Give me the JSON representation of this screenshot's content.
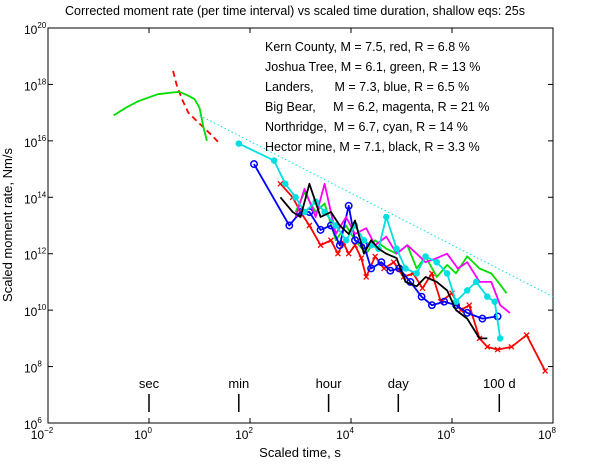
{
  "chart_data": {
    "type": "line",
    "title": "Corrected moment rate (per time interval) vs scaled time duration, shallow eqs: 25s",
    "xlabel": "Scaled time, s",
    "ylabel": "Scaled moment rate, Nm/s",
    "x_scale": "log",
    "y_scale": "log",
    "xlim": [
      0.01,
      100000000
    ],
    "ylim": [
      1000000,
      100000000000000000000
    ],
    "x_ticks": [
      {
        "value": 0.01,
        "base": "10",
        "exp": "−2"
      },
      {
        "value": 1,
        "base": "10",
        "exp": "0"
      },
      {
        "value": 100,
        "base": "10",
        "exp": "2"
      },
      {
        "value": 10000,
        "base": "10",
        "exp": "4"
      },
      {
        "value": 1000000,
        "base": "10",
        "exp": "6"
      },
      {
        "value": 100000000,
        "base": "10",
        "exp": "8"
      }
    ],
    "y_ticks": [
      {
        "value": 1000000,
        "base": "10",
        "exp": "6"
      },
      {
        "value": 100000000,
        "base": "10",
        "exp": "8"
      },
      {
        "value": 10000000000,
        "base": "10",
        "exp": "10"
      },
      {
        "value": 1000000000000,
        "base": "10",
        "exp": "12"
      },
      {
        "value": 100000000000000,
        "base": "10",
        "exp": "14"
      },
      {
        "value": 10000000000000000,
        "base": "10",
        "exp": "16"
      },
      {
        "value": 1000000000000000000,
        "base": "10",
        "exp": "18"
      },
      {
        "value": 100000000000000000000,
        "base": "10",
        "exp": "20"
      }
    ],
    "time_markers": [
      {
        "label": "sec",
        "x": 1
      },
      {
        "label": "min",
        "x": 60
      },
      {
        "label": "hour",
        "x": 3600
      },
      {
        "label": "day",
        "x": 86400
      },
      {
        "label": "100 d",
        "x": 8640000
      }
    ],
    "legend": [
      {
        "text": "Kern County, M = 7.5, red, R = 6.8 %"
      },
      {
        "text": "Joshua Tree, M = 6.1, green, R = 13 %"
      },
      {
        "text": "Landers,      M = 7.3, blue, R = 6.5 %"
      },
      {
        "text": "Big Bear,     M = 6.2, magenta, R = 21 %"
      },
      {
        "text": "Northridge,  M = 6.7, cyan, R = 14 %"
      },
      {
        "text": "Hector mine, M = 7.1, black, R = 3.3 %"
      }
    ],
    "grid": false,
    "series": [
      {
        "color": "#ff0000",
        "style": "solid",
        "marker": "x",
        "points": [
          [
            400,
            300000000000000.0
          ],
          [
            700,
            100000000000000.0
          ],
          [
            1000,
            30000000000000.0
          ],
          [
            1500,
            10000000000000.0
          ],
          [
            2500,
            2000000000000.0
          ],
          [
            4000,
            3000000000000.0
          ],
          [
            5500,
            1000000000000.0
          ],
          [
            7000,
            2500000000000.0
          ],
          [
            9000,
            1000000000000.0
          ],
          [
            12000,
            2000000000000.0
          ],
          [
            16000,
            700000000000.0
          ],
          [
            20000,
            150000000000.0
          ],
          [
            30000,
            800000000000.0
          ],
          [
            45000,
            300000000000.0
          ],
          [
            70000,
            500000000000.0
          ],
          [
            110000,
            150000000000.0
          ],
          [
            170000,
            200000000000.0
          ],
          [
            260000,
            60000000000.0
          ],
          [
            400000,
            200000000000.0
          ],
          [
            600000,
            20000000000.0
          ],
          [
            1000000,
            40000000000.0
          ],
          [
            1500000,
            10000000000.0
          ],
          [
            2200000,
            15000000000.0
          ],
          [
            3500000,
            1000000000.0
          ],
          [
            5000000,
            500000000.0
          ],
          [
            8000000,
            400000000.0
          ],
          [
            15000000,
            500000000.0
          ],
          [
            30000000,
            1300000000.0
          ],
          [
            70000000,
            70000000.0
          ]
        ]
      },
      {
        "color": "#ff0000",
        "style": "dashed",
        "marker": "none",
        "points": [
          [
            3,
            3e+18
          ],
          [
            3.5,
            1e+18
          ],
          [
            4.5,
            3e+17
          ],
          [
            6,
            1e+17
          ],
          [
            8,
            6e+16
          ],
          [
            12,
            3e+16
          ],
          [
            18,
            1.5e+16
          ],
          [
            25,
            8000000000000000.0
          ]
        ]
      },
      {
        "color": "#00dd00",
        "style": "solid",
        "marker": "none",
        "points": [
          [
            0.2,
            8e+16
          ],
          [
            0.35,
            1.5e+17
          ],
          [
            0.6,
            2.5e+17
          ],
          [
            1,
            3.5e+17
          ],
          [
            1.5,
            4.5e+17
          ],
          [
            2.5,
            5e+17
          ],
          [
            4,
            5.5e+17
          ],
          [
            6,
            4e+17
          ],
          [
            8,
            3e+17
          ],
          [
            10,
            1.5e+17
          ],
          [
            12,
            3e+16
          ],
          [
            14,
            1e+16
          ]
        ]
      },
      {
        "color": "#00dd00",
        "style": "solid",
        "marker": "none",
        "points": [
          [
            800,
            30000000000000.0
          ],
          [
            1200,
            150000000000000.0
          ],
          [
            2000,
            30000000000000.0
          ],
          [
            3000,
            60000000000000.0
          ],
          [
            5000,
            3000000000000.0
          ],
          [
            8000,
            10000000000000.0
          ],
          [
            12000,
            3000000000000.0
          ],
          [
            20000,
            1000000000000.0
          ],
          [
            30000,
            3000000000000.0
          ],
          [
            50000,
            1500000000000.0
          ],
          [
            80000,
            1000000000000.0
          ],
          [
            130000,
            2000000000000.0
          ],
          [
            200000,
            300000000000.0
          ],
          [
            300000,
            800000000000.0
          ],
          [
            500000,
            150000000000.0
          ],
          [
            800000,
            400000000000.0
          ],
          [
            1200000,
            200000000000.0
          ],
          [
            2000000,
            800000000000.0
          ],
          [
            3500000,
            300000000000.0
          ],
          [
            6000000,
            200000000000.0
          ],
          [
            9000000,
            80000000000.0
          ],
          [
            12000000,
            40000000000.0
          ]
        ]
      },
      {
        "color": "#0000ff",
        "style": "solid",
        "marker": "o",
        "points": [
          [
            120,
            1500000000000000.0
          ],
          [
            600,
            10000000000000.0
          ],
          [
            1000,
            30000000000000.0
          ],
          [
            1500,
            30000000000000.0
          ],
          [
            2500,
            7000000000000.0
          ],
          [
            4000,
            10000000000000.0
          ],
          [
            6000,
            2000000000000.0
          ],
          [
            9000,
            50000000000000.0
          ],
          [
            12000,
            3000000000000.0
          ],
          [
            18000,
            2000000000000.0
          ],
          [
            25000,
            300000000000.0
          ],
          [
            40000,
            500000000000.0
          ],
          [
            60000,
            250000000000.0
          ],
          [
            90000,
            300000000000.0
          ],
          [
            150000,
            100000000000.0
          ],
          [
            250000,
            30000000000.0
          ],
          [
            400000,
            15000000000.0
          ],
          [
            700000,
            20000000000.0
          ],
          [
            1200000,
            15000000000.0
          ],
          [
            2000000,
            8000000000.0
          ],
          [
            4000000,
            5000000000.0
          ],
          [
            8000000,
            6000000000.0
          ]
        ]
      },
      {
        "color": "#ff00ff",
        "style": "solid",
        "marker": "none",
        "points": [
          [
            800,
            20000000000000.0
          ],
          [
            1200,
            200000000000000.0
          ],
          [
            2000,
            20000000000000.0
          ],
          [
            3000,
            300000000000000.0
          ],
          [
            5000,
            5000000000000.0
          ],
          [
            8000,
            20000000000000.0
          ],
          [
            12000,
            5000000000000.0
          ],
          [
            20000,
            8000000000000.0
          ],
          [
            30000,
            2000000000000.0
          ],
          [
            50000,
            4000000000000.0
          ],
          [
            80000,
            1000000000000.0
          ],
          [
            130000,
            2000000000000.0
          ],
          [
            200000,
            1000000000000.0
          ],
          [
            300000,
            500000000000.0
          ],
          [
            500000,
            700000000000.0
          ],
          [
            800000,
            1000000000000.0
          ],
          [
            1300000,
            300000000000.0
          ],
          [
            2000000,
            500000000000.0
          ],
          [
            3500000,
            100000000000.0
          ],
          [
            6000000,
            100000000000.0
          ],
          [
            9000000,
            15000000000.0
          ],
          [
            14000000,
            8000000000.0
          ]
        ]
      },
      {
        "color": "#00e0e0",
        "style": "solid",
        "marker": "o",
        "points": [
          [
            60,
            8000000000000000.0
          ],
          [
            300,
            2000000000000000.0
          ],
          [
            500,
            300000000000000.0
          ],
          [
            800,
            100000000000000.0
          ],
          [
            1200,
            30000000000000.0
          ],
          [
            2000,
            70000000000000.0
          ],
          [
            3000,
            30000000000000.0
          ],
          [
            5000,
            10000000000000.0
          ],
          [
            8000,
            3000000000000.0
          ],
          [
            12000,
            10000000000000.0
          ],
          [
            18000,
            3000000000000.0
          ],
          [
            25000,
            2000000000000.0
          ],
          [
            35000,
            1500000000000.0
          ],
          [
            50000,
            20000000000000.0
          ],
          [
            80000,
            1500000000000.0
          ],
          [
            120000,
            300000000000.0
          ],
          [
            200000,
            200000000000.0
          ],
          [
            300000,
            800000000000.0
          ],
          [
            500000,
            500000000000.0
          ],
          [
            800000,
            200000000000.0
          ],
          [
            1200000,
            20000000000.0
          ],
          [
            2000000,
            50000000000.0
          ],
          [
            3000000,
            100000000000.0
          ],
          [
            5000000,
            30000000000.0
          ],
          [
            7000000,
            20000000000.0
          ],
          [
            9000000,
            1000000000.0
          ]
        ]
      },
      {
        "color": "#00e0e0",
        "style": "dotted",
        "marker": "none",
        "points": [
          [
            10,
            8e+16
          ],
          [
            100000000,
            30000000000.0
          ]
        ]
      },
      {
        "color": "#000000",
        "style": "solid",
        "marker": "none",
        "points": [
          [
            400,
            100000000000000.0
          ],
          [
            700,
            30000000000000.0
          ],
          [
            1000,
            20000000000000.0
          ],
          [
            1500,
            300000000000000.0
          ],
          [
            2500,
            20000000000000.0
          ],
          [
            4000,
            30000000000000.0
          ],
          [
            6000,
            10000000000000.0
          ],
          [
            9000,
            5000000000000.0
          ],
          [
            12000,
            15000000000000.0
          ],
          [
            18000,
            1000000000000.0
          ],
          [
            25000,
            3000000000000.0
          ],
          [
            35000,
            1500000000000.0
          ],
          [
            50000,
            1000000000000.0
          ],
          [
            80000,
            700000000000.0
          ],
          [
            120000,
            100000000000.0
          ],
          [
            200000,
            70000000000.0
          ],
          [
            300000,
            150000000000.0
          ],
          [
            500000,
            100000000000.0
          ],
          [
            800000,
            50000000000.0
          ],
          [
            1200000,
            10000000000.0
          ],
          [
            2000000,
            5000000000.0
          ],
          [
            3500000,
            1000000000.0
          ],
          [
            5000000,
            1000000000.0
          ]
        ]
      }
    ]
  }
}
